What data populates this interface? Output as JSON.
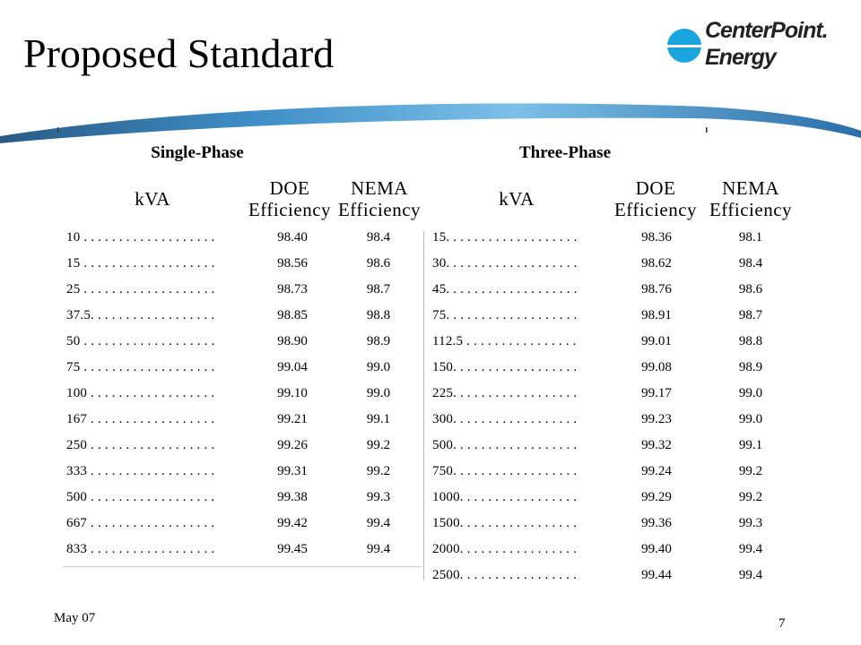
{
  "slide": {
    "title": "Proposed Standard",
    "footer_date": "May 07",
    "page_number": "7"
  },
  "logo": {
    "line1": "CenterPoint.",
    "line2": "Energy",
    "brand_color": "#1aa4e0"
  },
  "single_phase": {
    "heading": "Single-Phase",
    "col_kva": "kVA",
    "col_doe": [
      "DOE",
      "Efficiency"
    ],
    "col_nema": [
      "NEMA",
      "Efficiency"
    ],
    "rows": [
      {
        "kva": "10 . . . . . . . . . . . . . . . . . . .",
        "doe": "98.40",
        "nema": "98.4"
      },
      {
        "kva": "15 . . . . . . . . . . . . . . . . . . .",
        "doe": "98.56",
        "nema": "98.6"
      },
      {
        "kva": "25 . . . . . . . . . . . . . . . . . . .",
        "doe": "98.73",
        "nema": "98.7"
      },
      {
        "kva": "37.5. . . . . . . . . . . . . . . . . .",
        "doe": "98.85",
        "nema": "98.8"
      },
      {
        "kva": "50 . . . . . . . . . . . . . . . . . . .",
        "doe": "98.90",
        "nema": "98.9"
      },
      {
        "kva": "75 . . . . . . . . . . . . . . . . . . .",
        "doe": "99.04",
        "nema": "99.0"
      },
      {
        "kva": "100 . . . . . . . . . . . . . . . . . .",
        "doe": "99.10",
        "nema": "99.0"
      },
      {
        "kva": "167 . . . . . . . . . . . . . . . . . .",
        "doe": "99.21",
        "nema": "99.1"
      },
      {
        "kva": "250 . . . . . . . . . . . . . . . . . .",
        "doe": "99.26",
        "nema": "99.2"
      },
      {
        "kva": "333 . . . . . . . . . . . . . . . . . .",
        "doe": "99.31",
        "nema": "99.2"
      },
      {
        "kva": "500 . . . . . . . . . . . . . . . . . .",
        "doe": "99.38",
        "nema": "99.3"
      },
      {
        "kva": "667 . . . . . . . . . . . . . . . . . .",
        "doe": "99.42",
        "nema": "99.4"
      },
      {
        "kva": "833 . . . . . . . . . . . . . . . . . .",
        "doe": "99.45",
        "nema": "99.4"
      }
    ]
  },
  "three_phase": {
    "heading": "Three-Phase",
    "col_kva": "kVA",
    "col_doe": [
      "DOE",
      "Efficiency"
    ],
    "col_nema": [
      "NEMA",
      "Efficiency"
    ],
    "rows": [
      {
        "kva": "15. . . . . . . . . . . . . . . . . . .",
        "doe": "98.36",
        "nema": "98.1"
      },
      {
        "kva": "30. . . . . . . . . . . . . . . . . . .",
        "doe": "98.62",
        "nema": "98.4"
      },
      {
        "kva": "45. . . . . . . . . . . . . . . . . . .",
        "doe": "98.76",
        "nema": "98.6"
      },
      {
        "kva": "75. . . . . . . . . . . . . . . . . . .",
        "doe": "98.91",
        "nema": "98.7"
      },
      {
        "kva": "112.5 . . . . . . . . . . . . . . . .",
        "doe": "99.01",
        "nema": "98.8"
      },
      {
        "kva": "150. . . . . . . . . . . . . . . . . .",
        "doe": "99.08",
        "nema": "98.9"
      },
      {
        "kva": "225. . . . . . . . . . . . . . . . . .",
        "doe": "99.17",
        "nema": "99.0"
      },
      {
        "kva": "300. . . . . . . . . . . . . . . . . .",
        "doe": "99.23",
        "nema": "99.0"
      },
      {
        "kva": "500. . . . . . . . . . . . . . . . . .",
        "doe": "99.32",
        "nema": "99.1"
      },
      {
        "kva": "750. . . . . . . . . . . . . . . . . .",
        "doe": "99.24",
        "nema": "99.2"
      },
      {
        "kva": "1000. . . . . . . . . . . . . . . . .",
        "doe": "99.29",
        "nema": "99.2"
      },
      {
        "kva": "1500. . . . . . . . . . . . . . . . .",
        "doe": "99.36",
        "nema": "99.3"
      },
      {
        "kva": "2000. . . . . . . . . . . . . . . . .",
        "doe": "99.40",
        "nema": "99.4"
      },
      {
        "kva": "2500. . . . . . . . . . . . . . . . .",
        "doe": "99.44",
        "nema": "99.4"
      }
    ]
  }
}
